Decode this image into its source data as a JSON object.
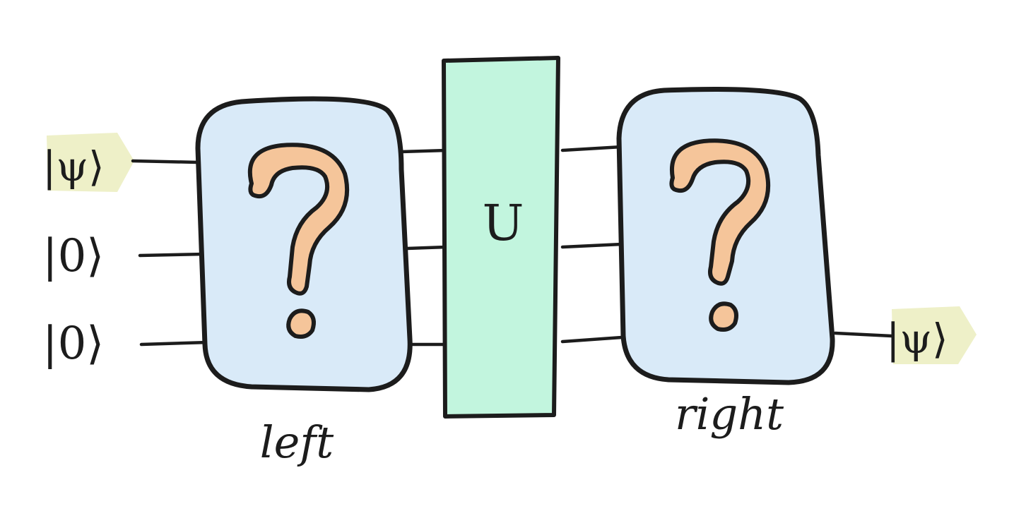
{
  "inputs": [
    {
      "label": "|ψ⟩",
      "highlighted": true
    },
    {
      "label": "|0⟩",
      "highlighted": false
    },
    {
      "label": "|0⟩",
      "highlighted": false
    }
  ],
  "output": {
    "label": "|ψ⟩",
    "highlighted": true
  },
  "blocks": {
    "left": {
      "symbol": "?",
      "caption": "left",
      "fill": "#d9eaf8"
    },
    "middle": {
      "symbol": "U",
      "caption": "",
      "fill": "#c2f5de"
    },
    "right": {
      "symbol": "?",
      "caption": "right",
      "fill": "#d9eaf8"
    }
  },
  "colors": {
    "ink": "#1c1c1c",
    "question_fill": "#f5c59a",
    "ket_highlight": "#eef0c8"
  }
}
